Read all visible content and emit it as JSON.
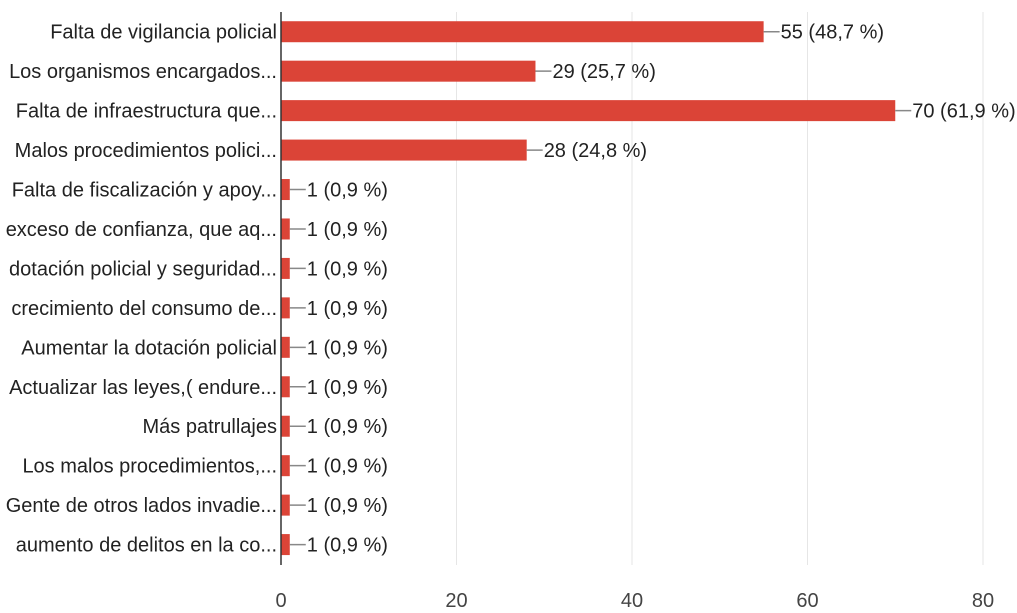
{
  "chart_data": {
    "type": "bar",
    "orientation": "horizontal",
    "categories": [
      "Falta de vigilancia policial",
      "Los organismos encargados...",
      "Falta de infraestructura que...",
      "Malos procedimientos polici...",
      "Falta de fiscalización y apoy...",
      "exceso de confianza, que aq...",
      "dotación policial y seguridad...",
      "crecimiento del consumo de...",
      "Aumentar la dotación policial",
      "Actualizar las leyes,( endure...",
      "Más patrullajes",
      "Los malos procedimientos,...",
      "Gente de otros lados invadie...",
      "aumento de delitos en la co..."
    ],
    "values": [
      55,
      29,
      70,
      28,
      1,
      1,
      1,
      1,
      1,
      1,
      1,
      1,
      1,
      1
    ],
    "data_labels": [
      "55 (48,7 %)",
      "29 (25,7 %)",
      "70 (61,9 %)",
      "28 (24,8 %)",
      "1 (0,9 %)",
      "1 (0,9 %)",
      "1 (0,9 %)",
      "1 (0,9 %)",
      "1 (0,9 %)",
      "1 (0,9 %)",
      "1 (0,9 %)",
      "1 (0,9 %)",
      "1 (0,9 %)",
      "1 (0,9 %)"
    ],
    "xlim": [
      0,
      80
    ],
    "x_ticks": [
      0,
      20,
      40,
      60,
      80
    ],
    "x_tick_labels": [
      "0",
      "20",
      "40",
      "60",
      "80"
    ],
    "title": "",
    "xlabel": "",
    "ylabel": "",
    "grid": true,
    "bar_color": "#db4437"
  }
}
